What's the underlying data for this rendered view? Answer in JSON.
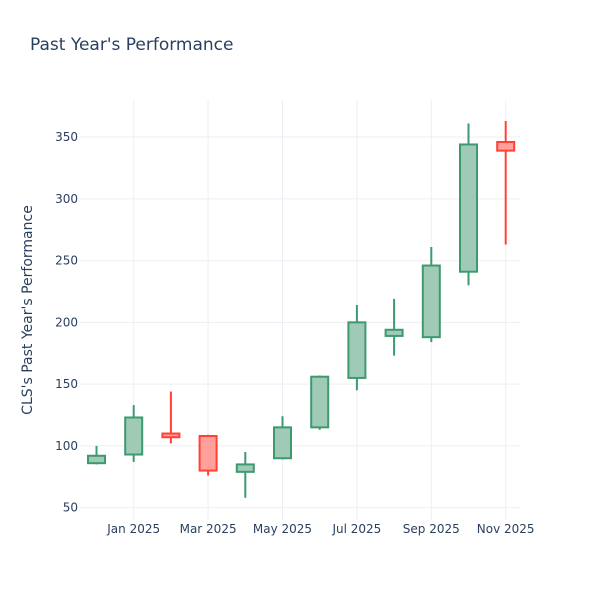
{
  "chart_data": {
    "type": "candlestick",
    "title": "Past Year's Performance",
    "xlabel": "",
    "ylabel": "CLS's Past Year's Performance",
    "ylim": [
      40,
      380
    ],
    "yticks": [
      50,
      100,
      150,
      200,
      250,
      300,
      350
    ],
    "xticks": [
      "Jan 2025",
      "Mar 2025",
      "May 2025",
      "Jul 2025",
      "Sep 2025",
      "Nov 2025"
    ],
    "xtick_months": [
      1,
      3,
      5,
      7,
      9,
      11
    ],
    "grid": true,
    "increasing_color": "#3d9970",
    "increasing_fill": "#9fcbb6",
    "decreasing_color": "#ff4136",
    "decreasing_fill": "#ffa09b",
    "series": [
      {
        "month": "Dec 2024",
        "m": 0,
        "open": 86,
        "high": 100,
        "low": 85,
        "close": 92
      },
      {
        "month": "Jan 2025",
        "m": 1,
        "open": 93,
        "high": 133,
        "low": 87,
        "close": 123
      },
      {
        "month": "Feb 2025",
        "m": 2,
        "open": 110,
        "high": 144,
        "low": 102,
        "close": 107
      },
      {
        "month": "Mar 2025",
        "m": 3,
        "open": 108,
        "high": 109,
        "low": 76,
        "close": 80
      },
      {
        "month": "Apr 2025",
        "m": 4,
        "open": 79,
        "high": 95,
        "low": 58,
        "close": 85
      },
      {
        "month": "May 2025",
        "m": 5,
        "open": 90,
        "high": 124,
        "low": 89,
        "close": 115
      },
      {
        "month": "Jun 2025",
        "m": 6,
        "open": 115,
        "high": 157,
        "low": 113,
        "close": 156
      },
      {
        "month": "Jul 2025",
        "m": 7,
        "open": 155,
        "high": 214,
        "low": 145,
        "close": 200
      },
      {
        "month": "Aug 2025",
        "m": 8,
        "open": 189,
        "high": 219,
        "low": 173,
        "close": 194
      },
      {
        "month": "Sep 2025",
        "m": 9,
        "open": 188,
        "high": 261,
        "low": 184,
        "close": 246
      },
      {
        "month": "Oct 2025",
        "m": 10,
        "open": 241,
        "high": 361,
        "low": 230,
        "close": 344
      },
      {
        "month": "Nov 2025",
        "m": 11,
        "open": 346,
        "high": 363,
        "low": 263,
        "close": 339
      }
    ]
  }
}
